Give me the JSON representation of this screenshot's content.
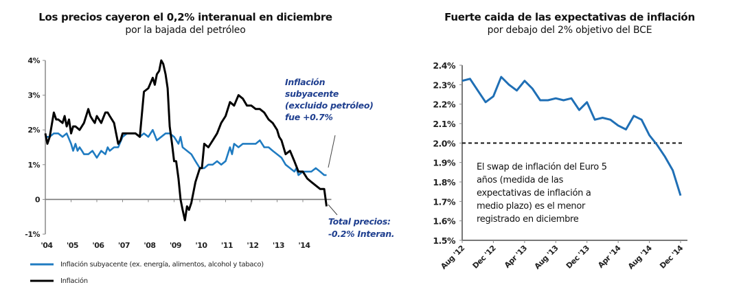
{
  "chart_data": [
    {
      "type": "line",
      "title": "Los precios cayeron el 0,2% interanual en diciembre",
      "subtitle": "por la bajada del petróleo",
      "xlabel": "",
      "ylabel": "",
      "ylim": [
        -1,
        4
      ],
      "yticks": [
        "4%",
        "3%",
        "2%",
        "1%",
        "0",
        "-1%"
      ],
      "ytick_values": [
        4,
        3,
        2,
        1,
        0,
        -1
      ],
      "xticks": [
        "'04",
        "'05",
        "'06",
        "'07",
        "'08",
        "'09",
        "'10",
        "'11",
        "'12",
        "'13",
        "'14"
      ],
      "xlim": [
        2004.0,
        2015.0
      ],
      "grid": false,
      "legend_position": "bottom-left",
      "colors": {
        "core": "#1f7bc1",
        "headline": "#000000",
        "annotation": "#1f3f8f"
      },
      "series": [
        {
          "name": "Inflación subyacente (ex. energía, alimentos, alcohol y tabaco)",
          "key": "core",
          "x": [
            2004.0,
            2004.17,
            2004.33,
            2004.5,
            2004.67,
            2004.83,
            2005.0,
            2005.08,
            2005.17,
            2005.25,
            2005.33,
            2005.42,
            2005.5,
            2005.67,
            2005.83,
            2006.0,
            2006.17,
            2006.33,
            2006.42,
            2006.5,
            2006.67,
            2006.83,
            2007.0,
            2007.17,
            2007.33,
            2007.5,
            2007.67,
            2007.83,
            2008.0,
            2008.17,
            2008.33,
            2008.5,
            2008.67,
            2008.83,
            2009.0,
            2009.17,
            2009.25,
            2009.33,
            2009.5,
            2009.67,
            2009.83,
            2010.0,
            2010.17,
            2010.33,
            2010.5,
            2010.67,
            2010.83,
            2011.0,
            2011.17,
            2011.25,
            2011.33,
            2011.5,
            2011.67,
            2011.83,
            2012.0,
            2012.17,
            2012.33,
            2012.5,
            2012.67,
            2012.83,
            2013.0,
            2013.17,
            2013.25,
            2013.33,
            2013.5,
            2013.67,
            2013.75,
            2013.83,
            2014.0,
            2014.17,
            2014.33,
            2014.5,
            2014.67,
            2014.83,
            2014.92
          ],
          "values": [
            1.8,
            1.8,
            1.9,
            1.9,
            1.8,
            1.9,
            1.6,
            1.4,
            1.6,
            1.4,
            1.5,
            1.4,
            1.3,
            1.3,
            1.4,
            1.2,
            1.4,
            1.3,
            1.5,
            1.4,
            1.5,
            1.5,
            1.8,
            1.9,
            1.9,
            1.9,
            1.8,
            1.9,
            1.8,
            2.0,
            1.7,
            1.8,
            1.9,
            1.9,
            1.8,
            1.6,
            1.8,
            1.5,
            1.4,
            1.3,
            1.1,
            0.9,
            0.9,
            1.0,
            1.0,
            1.1,
            1.0,
            1.1,
            1.5,
            1.3,
            1.6,
            1.5,
            1.6,
            1.6,
            1.6,
            1.6,
            1.7,
            1.5,
            1.5,
            1.4,
            1.3,
            1.2,
            1.1,
            1.0,
            0.9,
            0.8,
            0.9,
            0.7,
            0.8,
            0.8,
            0.8,
            0.9,
            0.8,
            0.7,
            0.7
          ]
        },
        {
          "name": "Inflación",
          "key": "headline",
          "x": [
            2004.0,
            2004.08,
            2004.17,
            2004.33,
            2004.42,
            2004.5,
            2004.67,
            2004.75,
            2004.83,
            2004.92,
            2005.0,
            2005.08,
            2005.17,
            2005.33,
            2005.5,
            2005.67,
            2005.75,
            2005.83,
            2005.92,
            2006.0,
            2006.17,
            2006.33,
            2006.42,
            2006.5,
            2006.67,
            2006.83,
            2006.92,
            2007.0,
            2007.17,
            2007.33,
            2007.5,
            2007.67,
            2007.83,
            2008.0,
            2008.17,
            2008.25,
            2008.33,
            2008.42,
            2008.5,
            2008.58,
            2008.67,
            2008.75,
            2008.83,
            2008.92,
            2009.0,
            2009.08,
            2009.17,
            2009.25,
            2009.33,
            2009.42,
            2009.5,
            2009.58,
            2009.67,
            2009.83,
            2010.0,
            2010.08,
            2010.17,
            2010.33,
            2010.5,
            2010.67,
            2010.83,
            2011.0,
            2011.17,
            2011.33,
            2011.5,
            2011.67,
            2011.83,
            2012.0,
            2012.17,
            2012.33,
            2012.5,
            2012.67,
            2012.83,
            2013.0,
            2013.08,
            2013.17,
            2013.33,
            2013.5,
            2013.67,
            2013.83,
            2014.0,
            2014.17,
            2014.33,
            2014.5,
            2014.67,
            2014.83,
            2014.92
          ],
          "values": [
            1.9,
            1.6,
            1.8,
            2.5,
            2.3,
            2.3,
            2.2,
            2.4,
            2.1,
            2.3,
            1.9,
            2.1,
            2.1,
            2.0,
            2.2,
            2.6,
            2.4,
            2.3,
            2.2,
            2.4,
            2.2,
            2.5,
            2.5,
            2.4,
            2.2,
            1.6,
            1.7,
            1.9,
            1.9,
            1.9,
            1.9,
            1.8,
            3.1,
            3.2,
            3.5,
            3.3,
            3.6,
            3.7,
            4.0,
            3.9,
            3.6,
            3.2,
            2.1,
            1.6,
            1.1,
            1.1,
            0.6,
            0.0,
            -0.3,
            -0.6,
            -0.2,
            -0.3,
            -0.1,
            0.5,
            0.9,
            0.9,
            1.6,
            1.5,
            1.7,
            1.9,
            2.2,
            2.4,
            2.8,
            2.7,
            3.0,
            2.9,
            2.7,
            2.7,
            2.6,
            2.6,
            2.5,
            2.3,
            2.2,
            2.0,
            1.8,
            1.7,
            1.3,
            1.4,
            1.1,
            0.8,
            0.8,
            0.6,
            0.5,
            0.4,
            0.3,
            0.3,
            -0.2
          ]
        }
      ],
      "annotations": [
        {
          "lines": [
            "Inflación",
            "subyacente",
            "(excluido petróleo)",
            "fue +0.7%"
          ],
          "target_series": "core",
          "target_value": 0.7
        },
        {
          "lines": [
            "Total precios:",
            "-0.2% Interan."
          ],
          "target_series": "headline",
          "target_value": -0.2
        }
      ]
    },
    {
      "type": "line",
      "title": "Fuerte caida de las expectativas de inflación",
      "subtitle": "por debajo del 2% objetivo del BCE",
      "xlabel": "",
      "ylabel": "",
      "ylim": [
        1.5,
        2.4
      ],
      "yticks": [
        "2.4%",
        "2.3%",
        "2.2%",
        "2.1%",
        "2.0%",
        "1.9%",
        "1.8%",
        "1.7%",
        "1.6%",
        "1.5%"
      ],
      "ytick_values": [
        2.4,
        2.3,
        2.2,
        2.1,
        2.0,
        1.9,
        1.8,
        1.7,
        1.6,
        1.5
      ],
      "xticks": [
        "Aug '12",
        "Dec '12",
        "Apr '13",
        "Aug '13",
        "Dec '13",
        "Apr '14",
        "Aug '14",
        "Dec '14"
      ],
      "grid": false,
      "colors": {
        "line": "#1f6fb5",
        "reference": "#111111"
      },
      "reference_line": {
        "value": 2.0,
        "style": "dashed"
      },
      "series": [
        {
          "name": "Swap de inflación del Euro 5 años",
          "x": [
            "Aug '12",
            "Sep '12",
            "Oct '12",
            "Nov '12",
            "Dec '12",
            "Jan '13",
            "Feb '13",
            "Mar '13",
            "Apr '13",
            "May '13",
            "Jun '13",
            "Jul '13",
            "Aug '13",
            "Sep '13",
            "Oct '13",
            "Nov '13",
            "Dec '13",
            "Jan '14",
            "Feb '14",
            "Mar '14",
            "Apr '14",
            "May '14",
            "Jun '14",
            "Jul '14",
            "Aug '14",
            "Sep '14",
            "Oct '14",
            "Nov '14",
            "Dec '14"
          ],
          "values": [
            2.32,
            2.33,
            2.27,
            2.21,
            2.24,
            2.34,
            2.3,
            2.27,
            2.32,
            2.28,
            2.22,
            2.22,
            2.23,
            2.22,
            2.23,
            2.17,
            2.21,
            2.12,
            2.13,
            2.12,
            2.09,
            2.07,
            2.14,
            2.12,
            2.04,
            1.99,
            1.93,
            1.86,
            1.73
          ]
        }
      ],
      "annotations": [
        {
          "lines": [
            "El swap de inflación del Euro 5",
            "años (medida de las",
            "expectativas de inflación a",
            "medio plazo) es el menor",
            "registrado en diciembre"
          ]
        }
      ]
    }
  ]
}
